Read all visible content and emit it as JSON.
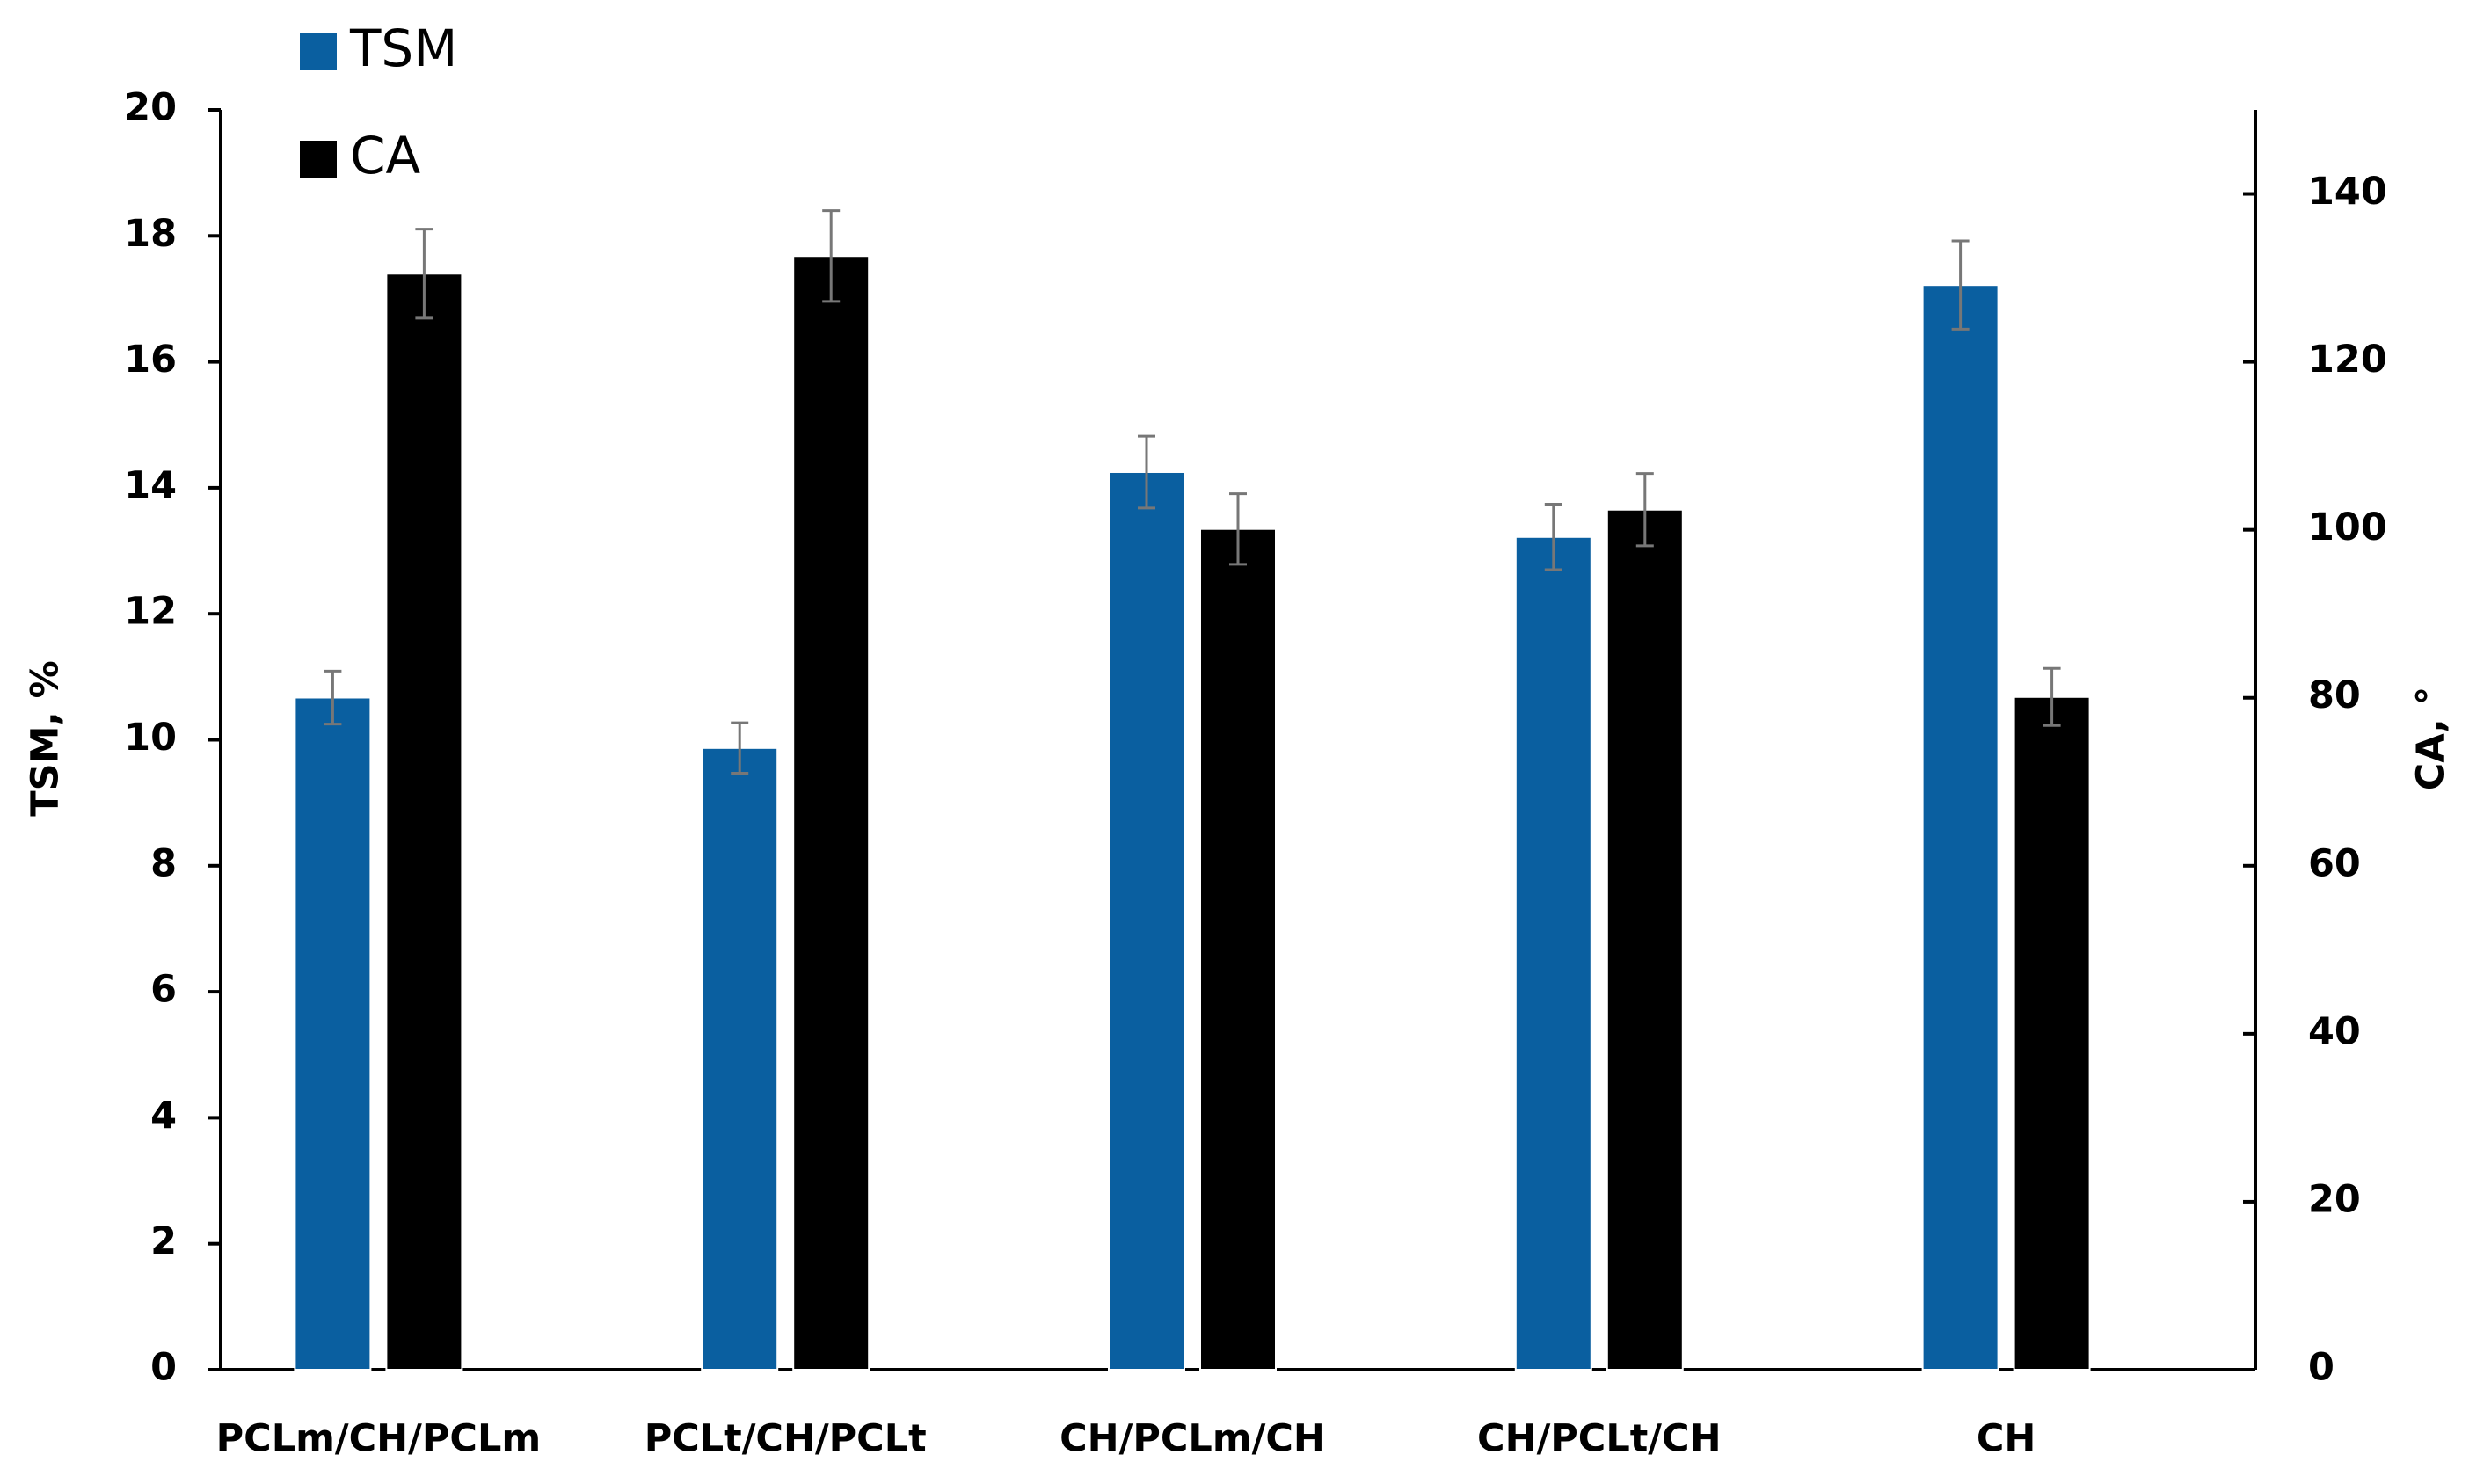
{
  "chart_data": {
    "type": "bar",
    "categories": [
      "PCLm/CH/PCLm",
      "PCLt/CH/PCLt",
      "CH/PCLm/CH",
      "CH/PCLt/CH",
      "CH"
    ],
    "series": [
      {
        "name": "TSM",
        "color": "#0a5fa0",
        "values": [
          10.67,
          9.87,
          14.25,
          13.22,
          17.22
        ],
        "error": [
          0.42,
          0.4,
          0.57,
          0.52,
          0.7
        ]
      },
      {
        "name": "CA",
        "color": "#000000",
        "axis": "y2",
        "values": [
          130.5,
          132.6,
          100.1,
          102.4,
          80.1
        ],
        "error": [
          5.3,
          5.4,
          4.2,
          4.3,
          3.4
        ]
      }
    ],
    "y_label": "TSM, %",
    "y2_label": "CA, °",
    "ylim": [
      0,
      20
    ],
    "yticks": [
      0,
      2,
      4,
      6,
      8,
      10,
      12,
      14,
      16,
      18,
      20
    ],
    "y2lim": [
      0,
      150
    ],
    "y2ticks": [
      0,
      20,
      40,
      60,
      80,
      100,
      120,
      140
    ],
    "legend": "top-left"
  }
}
